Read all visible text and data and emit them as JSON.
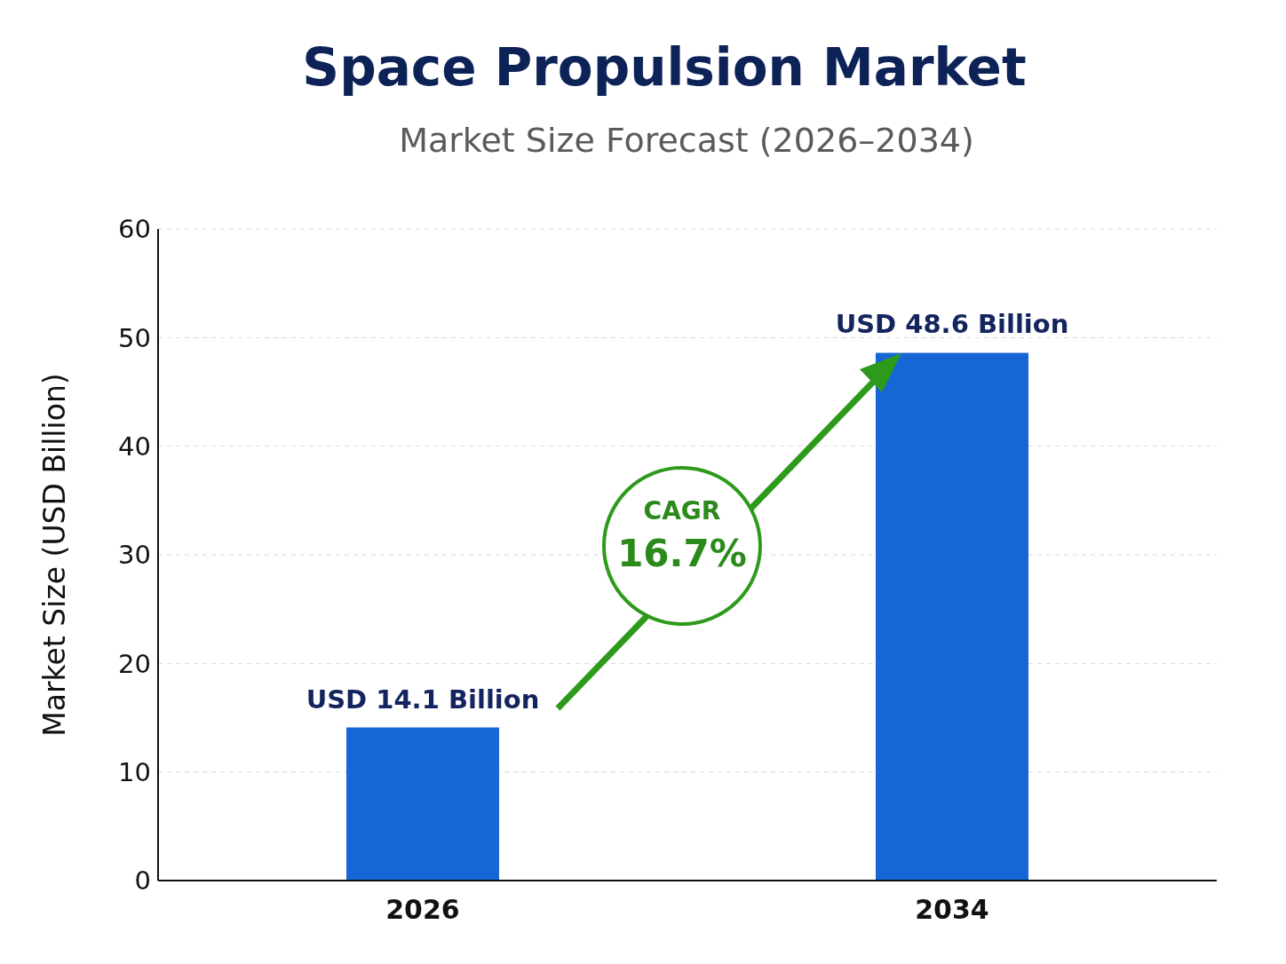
{
  "chart_data": {
    "type": "bar",
    "title": "Space Propulsion Market",
    "subtitle": "Market Size Forecast (2026–2034)",
    "ylabel": "Market Size (USD Billion)",
    "categories": [
      "2026",
      "2034"
    ],
    "values": [
      14.1,
      48.6
    ],
    "value_labels": [
      "USD 14.1 Billion",
      "USD 48.6 Billion"
    ],
    "color": "#1766d6",
    "ylim": [
      0,
      60
    ],
    "yticks": [
      0,
      10,
      20,
      30,
      40,
      50,
      60
    ],
    "grid": "y",
    "annotations": [
      "CAGR",
      "16.7%"
    ]
  }
}
